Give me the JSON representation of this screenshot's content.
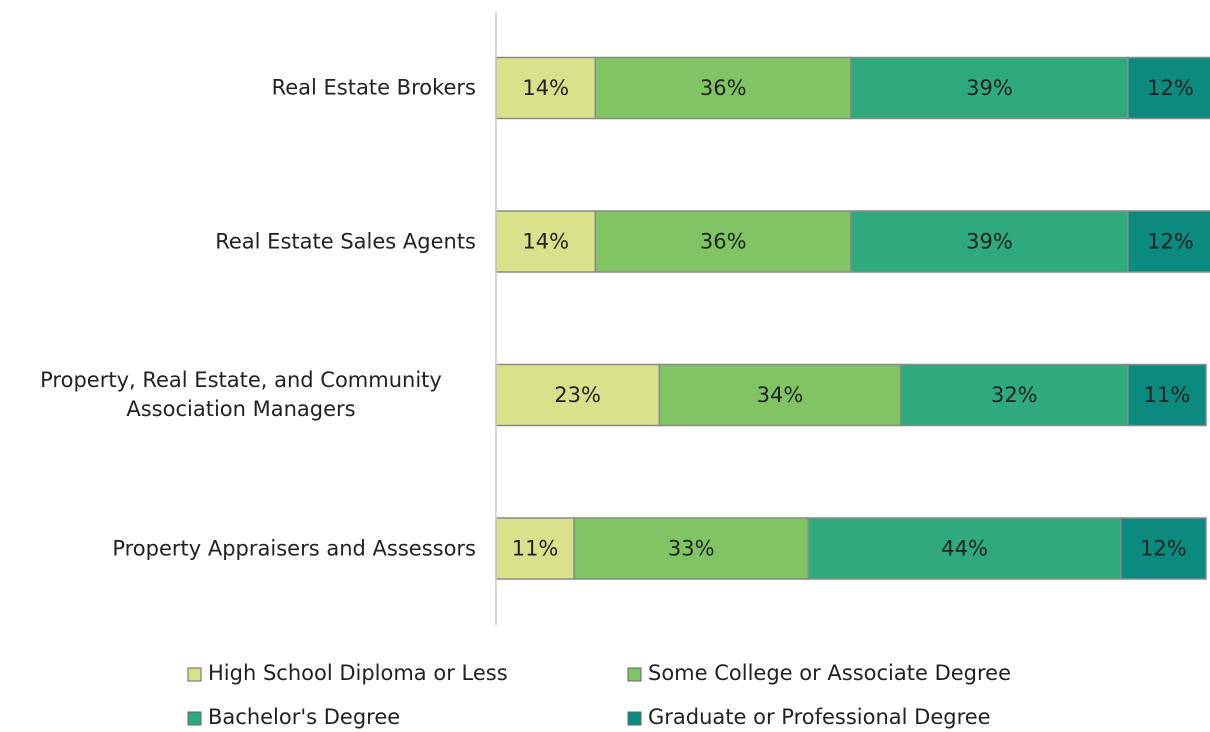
{
  "chart_data": {
    "type": "stacked-bar-horizontal",
    "categories": [
      "Real Estate Brokers",
      "Real Estate Sales Agents",
      "Property, Real Estate, and Community Association Managers",
      "Property Appraisers and Assessors"
    ],
    "xlim": [
      0,
      100
    ],
    "series": [
      {
        "name": "High School Diploma or Less",
        "color": "#d9e28b",
        "values": [
          14,
          14,
          23,
          11
        ],
        "value_labels": [
          "14%",
          "14%",
          "23%",
          "11%"
        ]
      },
      {
        "name": "Some College or Associate Degree",
        "color": "#80c463",
        "values": [
          36,
          36,
          34,
          33
        ],
        "value_labels": [
          "36%",
          "36%",
          "34%",
          "33%"
        ]
      },
      {
        "name": "Bachelor's Degree",
        "color": "#2eaa7c",
        "values": [
          39,
          39,
          32,
          44
        ],
        "value_labels": [
          "39%",
          "39%",
          "32%",
          "44%"
        ]
      },
      {
        "name": "Graduate or Professional Degree",
        "color": "#0b8a80",
        "values": [
          12,
          12,
          11,
          12
        ],
        "value_labels": [
          "12%",
          "12%",
          "11%",
          "12%"
        ]
      }
    ]
  }
}
